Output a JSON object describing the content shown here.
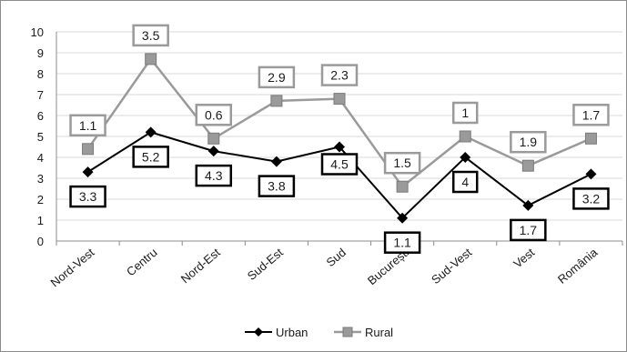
{
  "chart_data": {
    "type": "line",
    "categories": [
      "Nord-Vest",
      "Centru",
      "Nord-Est",
      "Sud-Est",
      "Sud",
      "București",
      "Sud-Vest",
      "Vest",
      "România"
    ],
    "yticks": [
      "0",
      "1",
      "2",
      "3",
      "4",
      "5",
      "6",
      "7",
      "8",
      "9",
      "10"
    ],
    "ylim": [
      0,
      10
    ],
    "grid": true,
    "legend_position": "bottom",
    "series": [
      {
        "name": "Urban",
        "color": "#000000",
        "marker": "diamond",
        "values": [
          3.3,
          5.2,
          4.3,
          3.8,
          4.5,
          1.1,
          4.0,
          1.7,
          3.2
        ],
        "labels": [
          "3.3",
          "5.2",
          "4.3",
          "3.8",
          "4.5",
          "1.1",
          "4",
          "1.7",
          "3.2"
        ]
      },
      {
        "name": "Rural",
        "color": "#9a9a9a",
        "marker": "square",
        "values": [
          4.4,
          8.7,
          4.9,
          6.7,
          6.8,
          2.6,
          5.0,
          3.6,
          4.9
        ],
        "labels": [
          "1.1",
          "3.5",
          "0.6",
          "2.9",
          "2.3",
          "1.5",
          "1",
          "1.9",
          "1.7"
        ]
      }
    ]
  }
}
